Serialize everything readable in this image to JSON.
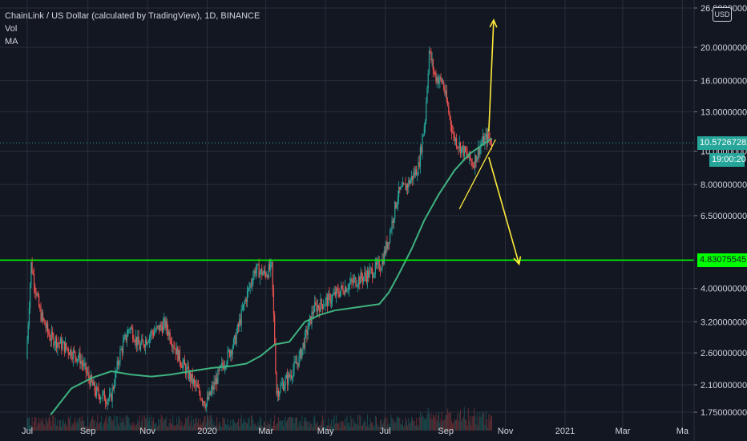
{
  "legend": {
    "title": "ChainLink / US Dollar (calculated by TradingView), 1D, BINANCE",
    "vol": "Vol",
    "ma": "MA"
  },
  "currency": "USD",
  "last_price": "10.57267282",
  "countdown": "19:00:20",
  "support_level": "4.83075545",
  "colors": {
    "background": "#131722",
    "grid": "#2a2e39",
    "up": "#26a69a",
    "down": "#ef5350",
    "ma": "#3fb27f",
    "support": "#00ff00",
    "arrows": "#ffeb3b",
    "text": "#d1d4dc"
  },
  "chart_data": {
    "type": "candlestick",
    "x_axis": {
      "ticks": [
        "Jul",
        "Sep",
        "Nov",
        "2020",
        "Mar",
        "May",
        "Jul",
        "Sep",
        "Nov",
        "2021",
        "Mar",
        "Ma"
      ]
    },
    "y_axis": {
      "scale": "log",
      "ticks": [
        "26.00000000",
        "20.00000000",
        "16.00000000",
        "13.00000000",
        "10.00000000",
        "8.00000000",
        "6.50000000",
        "4.00000000",
        "3.20000000",
        "2.60000000",
        "2.10000000",
        "1.75000000"
      ]
    },
    "price_path": [
      [
        "2019-07-01",
        2.5
      ],
      [
        "2019-07-06",
        4.7
      ],
      [
        "2019-07-15",
        3.4
      ],
      [
        "2019-07-25",
        2.9
      ],
      [
        "2019-08-10",
        2.7
      ],
      [
        "2019-08-25",
        2.5
      ],
      [
        "2019-09-10",
        2.0
      ],
      [
        "2019-09-25",
        1.9
      ],
      [
        "2019-10-05",
        2.6
      ],
      [
        "2019-10-15",
        3.1
      ],
      [
        "2019-10-25",
        2.7
      ],
      [
        "2019-11-05",
        2.95
      ],
      [
        "2019-11-20",
        3.15
      ],
      [
        "2019-12-05",
        2.5
      ],
      [
        "2019-12-20",
        2.1
      ],
      [
        "2020-01-01",
        1.85
      ],
      [
        "2020-01-15",
        2.3
      ],
      [
        "2020-01-30",
        2.8
      ],
      [
        "2020-02-10",
        3.7
      ],
      [
        "2020-02-20",
        4.55
      ],
      [
        "2020-03-01",
        4.4
      ],
      [
        "2020-03-08",
        4.6
      ],
      [
        "2020-03-13",
        2.0
      ],
      [
        "2020-03-25",
        2.2
      ],
      [
        "2020-04-05",
        2.5
      ],
      [
        "2020-04-20",
        3.5
      ],
      [
        "2020-05-05",
        3.7
      ],
      [
        "2020-05-20",
        4.0
      ],
      [
        "2020-06-01",
        4.2
      ],
      [
        "2020-06-15",
        4.4
      ],
      [
        "2020-06-28",
        4.7
      ],
      [
        "2020-07-05",
        5.5
      ],
      [
        "2020-07-15",
        7.5
      ],
      [
        "2020-07-25",
        8.0
      ],
      [
        "2020-08-05",
        9.0
      ],
      [
        "2020-08-12",
        12.5
      ],
      [
        "2020-08-16",
        19.5
      ],
      [
        "2020-08-22",
        16.5
      ],
      [
        "2020-08-30",
        15.8
      ],
      [
        "2020-09-05",
        13.0
      ],
      [
        "2020-09-10",
        11.0
      ],
      [
        "2020-09-20",
        10.0
      ],
      [
        "2020-09-30",
        9.2
      ],
      [
        "2020-10-08",
        10.5
      ],
      [
        "2020-10-15",
        11.0
      ],
      [
        "2020-10-19",
        10.57
      ]
    ],
    "ma_path": [
      [
        "2019-07-25",
        1.72
      ],
      [
        "2019-08-15",
        2.05
      ],
      [
        "2019-09-05",
        2.2
      ],
      [
        "2019-09-25",
        2.3
      ],
      [
        "2019-10-15",
        2.25
      ],
      [
        "2019-11-05",
        2.22
      ],
      [
        "2019-11-25",
        2.25
      ],
      [
        "2019-12-15",
        2.3
      ],
      [
        "2020-01-05",
        2.35
      ],
      [
        "2020-01-25",
        2.38
      ],
      [
        "2020-02-10",
        2.42
      ],
      [
        "2020-02-25",
        2.55
      ],
      [
        "2020-03-10",
        2.75
      ],
      [
        "2020-03-25",
        2.8
      ],
      [
        "2020-04-10",
        3.2
      ],
      [
        "2020-04-25",
        3.35
      ],
      [
        "2020-05-10",
        3.45
      ],
      [
        "2020-05-25",
        3.5
      ],
      [
        "2020-06-10",
        3.55
      ],
      [
        "2020-06-25",
        3.6
      ],
      [
        "2020-07-05",
        3.9
      ],
      [
        "2020-07-15",
        4.4
      ],
      [
        "2020-07-28",
        5.2
      ],
      [
        "2020-08-10",
        6.3
      ],
      [
        "2020-08-25",
        7.5
      ],
      [
        "2020-09-10",
        8.8
      ],
      [
        "2020-09-25",
        9.8
      ],
      [
        "2020-10-10",
        10.5
      ],
      [
        "2020-10-18",
        10.9
      ]
    ],
    "support_line": 4.83,
    "trendlines": [
      {
        "from": [
          "2020-09-15",
          6.8
        ],
        "to": [
          "2020-10-22",
          10.8
        ]
      }
    ],
    "arrows": [
      {
        "from": [
          "2020-10-15",
          11.4
        ],
        "to": [
          "2020-10-20",
          24.0
        ]
      },
      {
        "from": [
          "2020-10-15",
          9.6
        ],
        "to": [
          "2020-11-15",
          4.7
        ]
      }
    ]
  }
}
